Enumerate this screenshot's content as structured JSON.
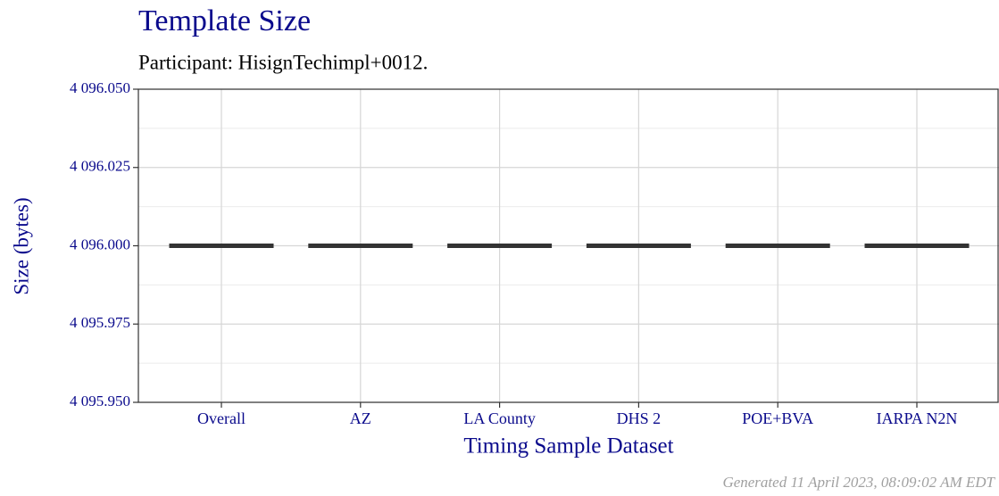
{
  "chart_data": {
    "type": "box",
    "title": "Template Size",
    "subtitle": "Participant: HisignTechimpl+0012.",
    "x_label": "Timing Sample Dataset",
    "y_label": "Size (bytes)",
    "caption": "Generated 11 April 2023, 08:09:02 AM EDT",
    "categories": [
      "Overall",
      "AZ",
      "LA County",
      "DHS 2",
      "POE+BVA",
      "IARPA N2N"
    ],
    "values": [
      4096,
      4096,
      4096,
      4096,
      4096,
      4096
    ],
    "color": "#333333",
    "ylim": [
      4095.95,
      4096.05
    ],
    "yticks": [
      {
        "value": 4095.95,
        "label": "4 095.950"
      },
      {
        "value": 4095.975,
        "label": "4 095.975"
      },
      {
        "value": 4096,
        "label": "4 096.000"
      },
      {
        "value": 4096.025,
        "label": "4 096.025"
      },
      {
        "value": 4096.05,
        "label": "4 096.050"
      }
    ],
    "grid": true
  }
}
